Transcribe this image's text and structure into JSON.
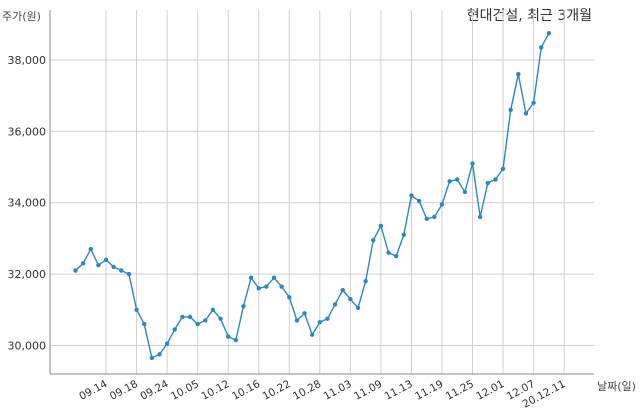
{
  "chart_data": {
    "type": "line",
    "title": "현대건설, 최근 3개월",
    "ylabel": "주가(원)",
    "xlabel": "날짜(일)",
    "ylim": [
      29200,
      39400
    ],
    "yticks": [
      30000,
      32000,
      34000,
      36000,
      38000
    ],
    "ytick_labels": [
      "30,000",
      "32,000",
      "34,000",
      "36,000",
      "38,000"
    ],
    "grid": true,
    "line_color": "#2e86c1",
    "x_tick_labels": [
      {
        "index": 4,
        "label": "09.14"
      },
      {
        "index": 8,
        "label": "09.18"
      },
      {
        "index": 12,
        "label": "09.24"
      },
      {
        "index": 16,
        "label": "10.05"
      },
      {
        "index": 20,
        "label": "10.12"
      },
      {
        "index": 24,
        "label": "10.16"
      },
      {
        "index": 28,
        "label": "10.22"
      },
      {
        "index": 32,
        "label": "10.28"
      },
      {
        "index": 36,
        "label": "11.03"
      },
      {
        "index": 40,
        "label": "11.09"
      },
      {
        "index": 44,
        "label": "11.13"
      },
      {
        "index": 48,
        "label": "11.19"
      },
      {
        "index": 52,
        "label": "11.25"
      },
      {
        "index": 56,
        "label": "12.01"
      },
      {
        "index": 60,
        "label": "12.07"
      },
      {
        "index": 64,
        "label": "20.12.11"
      }
    ],
    "values": [
      32100,
      32300,
      32700,
      32250,
      32400,
      32200,
      32100,
      32000,
      31000,
      30600,
      29650,
      29750,
      30050,
      30450,
      30800,
      30800,
      30600,
      30700,
      31000,
      30750,
      30250,
      30150,
      31100,
      31900,
      31600,
      31650,
      31900,
      31650,
      31350,
      30700,
      30900,
      30300,
      30650,
      30750,
      31150,
      31550,
      31300,
      31050,
      31800,
      32950,
      33350,
      32600,
      32500,
      33100,
      34200,
      34050,
      33550,
      33600,
      33950,
      34600,
      34650,
      34300,
      35100,
      33600,
      34550,
      34650,
      34950,
      36600,
      37600,
      36500,
      36800,
      38350,
      38750
    ]
  }
}
